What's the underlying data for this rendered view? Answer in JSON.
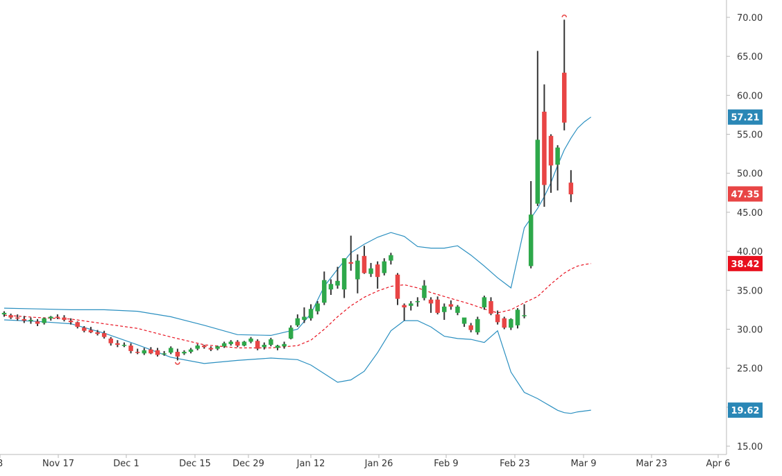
{
  "chart_data": {
    "type": "candlestick",
    "y_axis_ticks": [
      "15.00",
      "20.00",
      "25.00",
      "30.00",
      "35.00",
      "40.00",
      "45.00",
      "50.00",
      "55.00",
      "60.00",
      "65.00",
      "70.00"
    ],
    "ylim": [
      14.0,
      72.0
    ],
    "x_axis_labels": [
      "8",
      "Nov 17",
      "Dec 1",
      "Dec 15",
      "Dec 29",
      "Jan 12",
      "Jan 26",
      "Feb 9",
      "Feb 23",
      "Mar 9",
      "Mar 23",
      "Apr 6"
    ],
    "price_badges": [
      {
        "label": "57.21",
        "value": 57.21,
        "color": "#2a87b6"
      },
      {
        "label": "47.35",
        "value": 47.35,
        "color": "#e84545"
      },
      {
        "label": "38.42",
        "value": 38.42,
        "color": "#e8101e"
      },
      {
        "label": "19.62",
        "value": 19.62,
        "color": "#2a87b6"
      }
    ],
    "colors": {
      "up": "#2ea84a",
      "down": "#e84545",
      "wick": "#333333",
      "band": "#2a8fc0",
      "middle": "#e8101e"
    },
    "candles": [
      {
        "date": "Nov 7",
        "open": 31.9,
        "high": 32.3,
        "low": 31.6,
        "close": 32.1
      },
      {
        "date": "Nov 10",
        "open": 31.8,
        "high": 32.0,
        "low": 31.3,
        "close": 31.5
      },
      {
        "date": "Nov 11",
        "open": 31.5,
        "high": 31.9,
        "low": 31.1,
        "close": 31.4
      },
      {
        "date": "Nov 12",
        "open": 31.3,
        "high": 31.7,
        "low": 30.8,
        "close": 31.1
      },
      {
        "date": "Nov 13",
        "open": 31.1,
        "high": 31.5,
        "low": 30.7,
        "close": 31.2
      },
      {
        "date": "Nov 14",
        "open": 31.0,
        "high": 31.3,
        "low": 30.4,
        "close": 30.7
      },
      {
        "date": "Nov 17",
        "open": 30.8,
        "high": 31.5,
        "low": 30.6,
        "close": 31.4
      },
      {
        "date": "Nov 18",
        "open": 31.4,
        "high": 31.7,
        "low": 31.1,
        "close": 31.6
      },
      {
        "date": "Nov 19",
        "open": 31.6,
        "high": 31.9,
        "low": 31.3,
        "close": 31.5
      },
      {
        "date": "Nov 20",
        "open": 31.5,
        "high": 31.8,
        "low": 31.0,
        "close": 31.2
      },
      {
        "date": "Nov 21",
        "open": 31.1,
        "high": 31.4,
        "low": 30.6,
        "close": 30.9
      },
      {
        "date": "Nov 24",
        "open": 30.9,
        "high": 31.0,
        "low": 30.1,
        "close": 30.3
      },
      {
        "date": "Nov 25",
        "open": 30.2,
        "high": 30.4,
        "low": 29.6,
        "close": 29.8
      },
      {
        "date": "Nov 26",
        "open": 29.9,
        "high": 30.3,
        "low": 29.5,
        "close": 29.6
      },
      {
        "date": "Nov 28",
        "open": 29.6,
        "high": 29.9,
        "low": 29.2,
        "close": 29.4
      },
      {
        "date": "Dec 1",
        "open": 29.5,
        "high": 29.8,
        "low": 28.8,
        "close": 29.0
      },
      {
        "date": "Dec 2",
        "open": 28.8,
        "high": 29.0,
        "low": 27.9,
        "close": 28.2
      },
      {
        "date": "Dec 3",
        "open": 28.2,
        "high": 28.6,
        "low": 27.7,
        "close": 28.0
      },
      {
        "date": "Dec 4",
        "open": 28.0,
        "high": 28.3,
        "low": 27.7,
        "close": 28.0
      },
      {
        "date": "Dec 5",
        "open": 27.9,
        "high": 28.2,
        "low": 26.9,
        "close": 27.2
      },
      {
        "date": "Dec 8",
        "open": 27.1,
        "high": 27.5,
        "low": 26.8,
        "close": 27.0
      },
      {
        "date": "Dec 9",
        "open": 26.9,
        "high": 27.6,
        "low": 26.7,
        "close": 27.3
      },
      {
        "date": "Dec 10",
        "open": 27.4,
        "high": 27.7,
        "low": 26.8,
        "close": 26.9
      },
      {
        "date": "Dec 11",
        "open": 27.3,
        "high": 27.6,
        "low": 26.5,
        "close": 26.7
      },
      {
        "date": "Dec 12",
        "open": 26.9,
        "high": 27.2,
        "low": 26.6,
        "close": 26.9
      },
      {
        "date": "Dec 15",
        "open": 27.0,
        "high": 27.8,
        "low": 26.8,
        "close": 27.6
      },
      {
        "date": "Dec 16",
        "open": 27.1,
        "high": 27.5,
        "low": 26.0,
        "close": 26.5
      },
      {
        "date": "Dec 17",
        "open": 26.9,
        "high": 27.3,
        "low": 26.7,
        "close": 27.1
      },
      {
        "date": "Dec 18",
        "open": 27.1,
        "high": 27.6,
        "low": 26.9,
        "close": 27.4
      },
      {
        "date": "Dec 19",
        "open": 27.5,
        "high": 28.1,
        "low": 27.3,
        "close": 27.9
      },
      {
        "date": "Dec 22",
        "open": 27.9,
        "high": 28.0,
        "low": 27.5,
        "close": 27.7
      },
      {
        "date": "Dec 23",
        "open": 27.6,
        "high": 27.8,
        "low": 27.2,
        "close": 27.4
      },
      {
        "date": "Dec 24",
        "open": 27.5,
        "high": 27.9,
        "low": 27.3,
        "close": 27.8
      },
      {
        "date": "Dec 26",
        "open": 27.8,
        "high": 28.4,
        "low": 27.6,
        "close": 28.2
      },
      {
        "date": "Dec 29",
        "open": 28.1,
        "high": 28.6,
        "low": 27.9,
        "close": 28.4
      },
      {
        "date": "Dec 30",
        "open": 28.4,
        "high": 28.6,
        "low": 27.7,
        "close": 27.9
      },
      {
        "date": "Dec 31",
        "open": 27.9,
        "high": 28.5,
        "low": 27.8,
        "close": 28.4
      },
      {
        "date": "Jan 2",
        "open": 28.4,
        "high": 29.0,
        "low": 28.2,
        "close": 28.8
      },
      {
        "date": "Jan 5",
        "open": 28.5,
        "high": 28.7,
        "low": 27.3,
        "close": 27.5
      },
      {
        "date": "Jan 6",
        "open": 27.7,
        "high": 28.3,
        "low": 27.4,
        "close": 28.0
      },
      {
        "date": "Jan 7",
        "open": 28.0,
        "high": 28.9,
        "low": 27.8,
        "close": 28.7
      },
      {
        "date": "Jan 8",
        "open": 27.6,
        "high": 28.0,
        "low": 27.3,
        "close": 27.9
      },
      {
        "date": "Jan 9",
        "open": 27.8,
        "high": 28.4,
        "low": 27.5,
        "close": 28.1
      },
      {
        "date": "Jan 12",
        "open": 28.8,
        "high": 30.5,
        "low": 28.7,
        "close": 30.2
      },
      {
        "date": "Jan 13",
        "open": 30.5,
        "high": 31.9,
        "low": 30.3,
        "close": 31.4
      },
      {
        "date": "Jan 14",
        "open": 31.2,
        "high": 32.8,
        "low": 30.8,
        "close": 31.6
      },
      {
        "date": "Jan 15",
        "open": 31.4,
        "high": 33.2,
        "low": 31.1,
        "close": 32.6
      },
      {
        "date": "Jan 16",
        "open": 32.3,
        "high": 33.6,
        "low": 31.9,
        "close": 33.3
      },
      {
        "date": "Jan 20",
        "open": 33.4,
        "high": 37.4,
        "low": 33.1,
        "close": 36.3
      },
      {
        "date": "Jan 21",
        "open": 35.1,
        "high": 36.4,
        "low": 34.4,
        "close": 35.8
      },
      {
        "date": "Jan 22",
        "open": 35.6,
        "high": 38.0,
        "low": 35.2,
        "close": 36.2
      },
      {
        "date": "Jan 23",
        "open": 35.1,
        "high": 39.1,
        "low": 34.0,
        "close": 39.1
      },
      {
        "date": "Jan 26",
        "open": 38.6,
        "high": 42.0,
        "low": 37.5,
        "close": 38.4
      },
      {
        "date": "Jan 27",
        "open": 36.4,
        "high": 39.6,
        "low": 34.6,
        "close": 38.8
      },
      {
        "date": "Jan 28",
        "open": 39.4,
        "high": 40.7,
        "low": 37.1,
        "close": 37.2
      },
      {
        "date": "Jan 29",
        "open": 37.1,
        "high": 38.5,
        "low": 36.7,
        "close": 37.8
      },
      {
        "date": "Jan 30",
        "open": 38.3,
        "high": 38.7,
        "low": 35.2,
        "close": 36.7
      },
      {
        "date": "Feb 2",
        "open": 37.2,
        "high": 39.1,
        "low": 36.9,
        "close": 38.7
      },
      {
        "date": "Feb 3",
        "open": 38.8,
        "high": 39.8,
        "low": 38.3,
        "close": 39.5
      },
      {
        "date": "Feb 4",
        "open": 37.0,
        "high": 37.2,
        "low": 33.1,
        "close": 33.9
      },
      {
        "date": "Feb 5",
        "open": 33.1,
        "high": 33.3,
        "low": 31.1,
        "close": 32.8
      },
      {
        "date": "Feb 6",
        "open": 33.0,
        "high": 33.6,
        "low": 32.4,
        "close": 33.3
      },
      {
        "date": "Feb 9",
        "open": 33.5,
        "high": 34.1,
        "low": 32.9,
        "close": 33.6
      },
      {
        "date": "Feb 10",
        "open": 34.0,
        "high": 36.3,
        "low": 33.7,
        "close": 35.6
      },
      {
        "date": "Feb 11",
        "open": 33.8,
        "high": 34.1,
        "low": 32.1,
        "close": 33.3
      },
      {
        "date": "Feb 12",
        "open": 33.8,
        "high": 34.2,
        "low": 31.9,
        "close": 32.1
      },
      {
        "date": "Feb 13",
        "open": 32.2,
        "high": 33.3,
        "low": 31.2,
        "close": 32.9
      },
      {
        "date": "Feb 17",
        "open": 33.2,
        "high": 33.7,
        "low": 32.5,
        "close": 32.9
      },
      {
        "date": "Feb 18",
        "open": 32.1,
        "high": 33.1,
        "low": 31.8,
        "close": 32.9
      },
      {
        "date": "Feb 19",
        "open": 30.7,
        "high": 31.1,
        "low": 30.3,
        "close": 31.5
      },
      {
        "date": "Feb 20",
        "open": 30.5,
        "high": 30.8,
        "low": 29.6,
        "close": 29.9
      },
      {
        "date": "Feb 23",
        "open": 29.6,
        "high": 31.6,
        "low": 29.3,
        "close": 31.3
      },
      {
        "date": "Feb 24",
        "open": 32.8,
        "high": 34.3,
        "low": 32.5,
        "close": 34.1
      },
      {
        "date": "Feb 25",
        "open": 33.6,
        "high": 34.1,
        "low": 31.8,
        "close": 32.0
      },
      {
        "date": "Feb 26",
        "open": 31.9,
        "high": 32.4,
        "low": 30.6,
        "close": 30.9
      },
      {
        "date": "Feb 27",
        "open": 31.4,
        "high": 31.6,
        "low": 30.0,
        "close": 30.2
      },
      {
        "date": "Mar 2",
        "open": 30.2,
        "high": 31.4,
        "low": 29.9,
        "close": 31.3
      },
      {
        "date": "Mar 3",
        "open": 30.5,
        "high": 32.7,
        "low": 30.1,
        "close": 32.5
      },
      {
        "date": "Mar 4",
        "open": 31.7,
        "high": 33.2,
        "low": 31.4,
        "close": 31.8
      },
      {
        "date": "Mar 5",
        "open": 38.1,
        "high": 49.0,
        "low": 37.8,
        "close": 44.7
      },
      {
        "date": "Mar 6",
        "open": 46.1,
        "high": 65.7,
        "low": 45.8,
        "close": 54.3
      },
      {
        "date": "Mar 9",
        "open": 57.9,
        "high": 61.4,
        "low": 45.7,
        "close": 48.5
      },
      {
        "date": "Mar 10",
        "open": 54.8,
        "high": 55.0,
        "low": 47.5,
        "close": 51.0
      },
      {
        "date": "Mar 11",
        "open": 51.1,
        "high": 53.6,
        "low": 47.8,
        "close": 53.3
      },
      {
        "date": "Mar 12",
        "open": 62.9,
        "high": 69.7,
        "low": 55.5,
        "close": 56.5
      },
      {
        "date": "Mar 13",
        "open": 48.8,
        "high": 50.4,
        "low": 46.3,
        "close": 47.3
      }
    ],
    "bollinger": {
      "period_index": [
        0,
        5,
        10,
        15,
        20,
        25,
        30,
        35,
        40,
        44,
        46,
        48,
        50,
        52,
        54,
        56,
        58,
        60,
        62,
        64,
        66,
        68,
        70,
        72,
        74,
        76,
        78,
        80,
        81,
        82,
        83,
        84,
        85,
        86,
        87,
        88
      ],
      "upper": [
        32.7,
        32.6,
        32.5,
        32.5,
        32.3,
        31.6,
        30.5,
        29.3,
        29.2,
        30.0,
        32.0,
        35.5,
        37.7,
        39.8,
        40.9,
        41.8,
        42.4,
        41.9,
        40.6,
        40.4,
        40.4,
        40.7,
        39.5,
        38.1,
        36.6,
        35.3,
        43.0,
        45.5,
        47.0,
        48.8,
        51.0,
        53.0,
        54.5,
        55.8,
        56.6,
        57.21
      ],
      "middle": [
        31.8,
        31.5,
        31.3,
        30.7,
        30.1,
        29.0,
        28.0,
        27.6,
        27.6,
        27.9,
        28.6,
        30.0,
        31.6,
        33.0,
        34.1,
        34.9,
        35.5,
        35.7,
        35.3,
        34.7,
        34.2,
        33.7,
        33.2,
        32.6,
        32.1,
        32.5,
        33.4,
        34.2,
        35.0,
        35.8,
        36.5,
        37.2,
        37.7,
        38.1,
        38.3,
        38.42
      ],
      "lower": [
        31.2,
        31.0,
        30.7,
        29.5,
        28.0,
        26.4,
        25.6,
        26.0,
        26.3,
        26.1,
        25.4,
        24.3,
        23.2,
        23.5,
        24.6,
        27.0,
        29.8,
        31.1,
        31.1,
        30.3,
        29.1,
        28.8,
        28.7,
        28.3,
        29.8,
        24.5,
        21.9,
        21.1,
        20.6,
        20.1,
        19.6,
        19.3,
        19.2,
        19.4,
        19.5,
        19.62
      ]
    },
    "markers": [
      {
        "kind": "high-arc",
        "at": "Mar 12",
        "value": 70.2
      },
      {
        "kind": "low-arc",
        "at": "Dec 16",
        "value": 25.6
      }
    ]
  }
}
